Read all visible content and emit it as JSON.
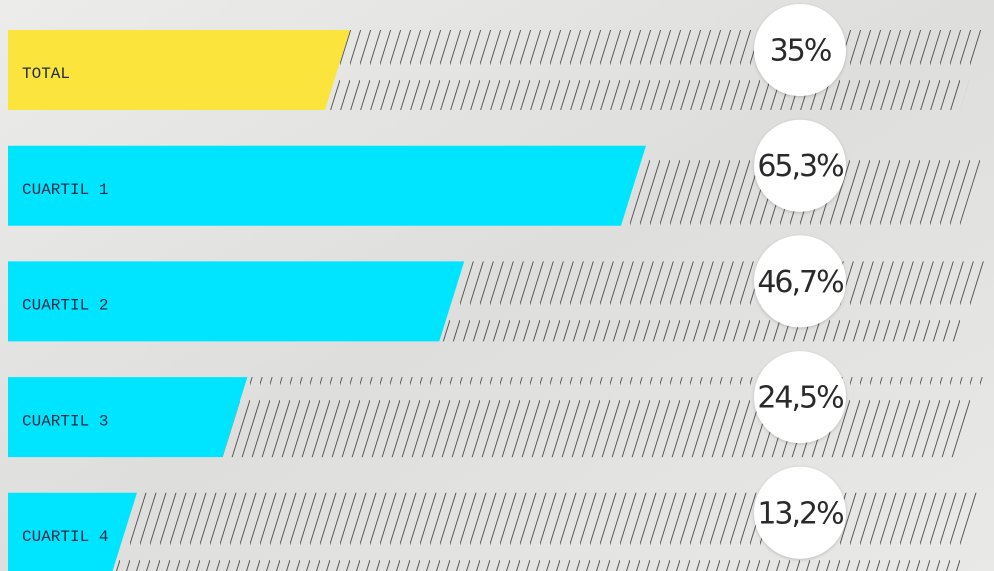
{
  "chart_data": {
    "type": "bar",
    "categories": [
      "TOTAL",
      "CUARTIL 1",
      "CUARTIL 2",
      "CUARTIL 3",
      "CUARTIL 4"
    ],
    "values": [
      35,
      65.3,
      46.7,
      24.5,
      13.2
    ],
    "value_labels": [
      "35%",
      "65,3%",
      "46,7%",
      "24,5%",
      "13,2%"
    ],
    "colors": [
      "#fbe43b",
      "#00e5ff",
      "#00e5ff",
      "#00e5ff",
      "#00e5ff"
    ],
    "xlim": [
      0,
      100
    ]
  }
}
